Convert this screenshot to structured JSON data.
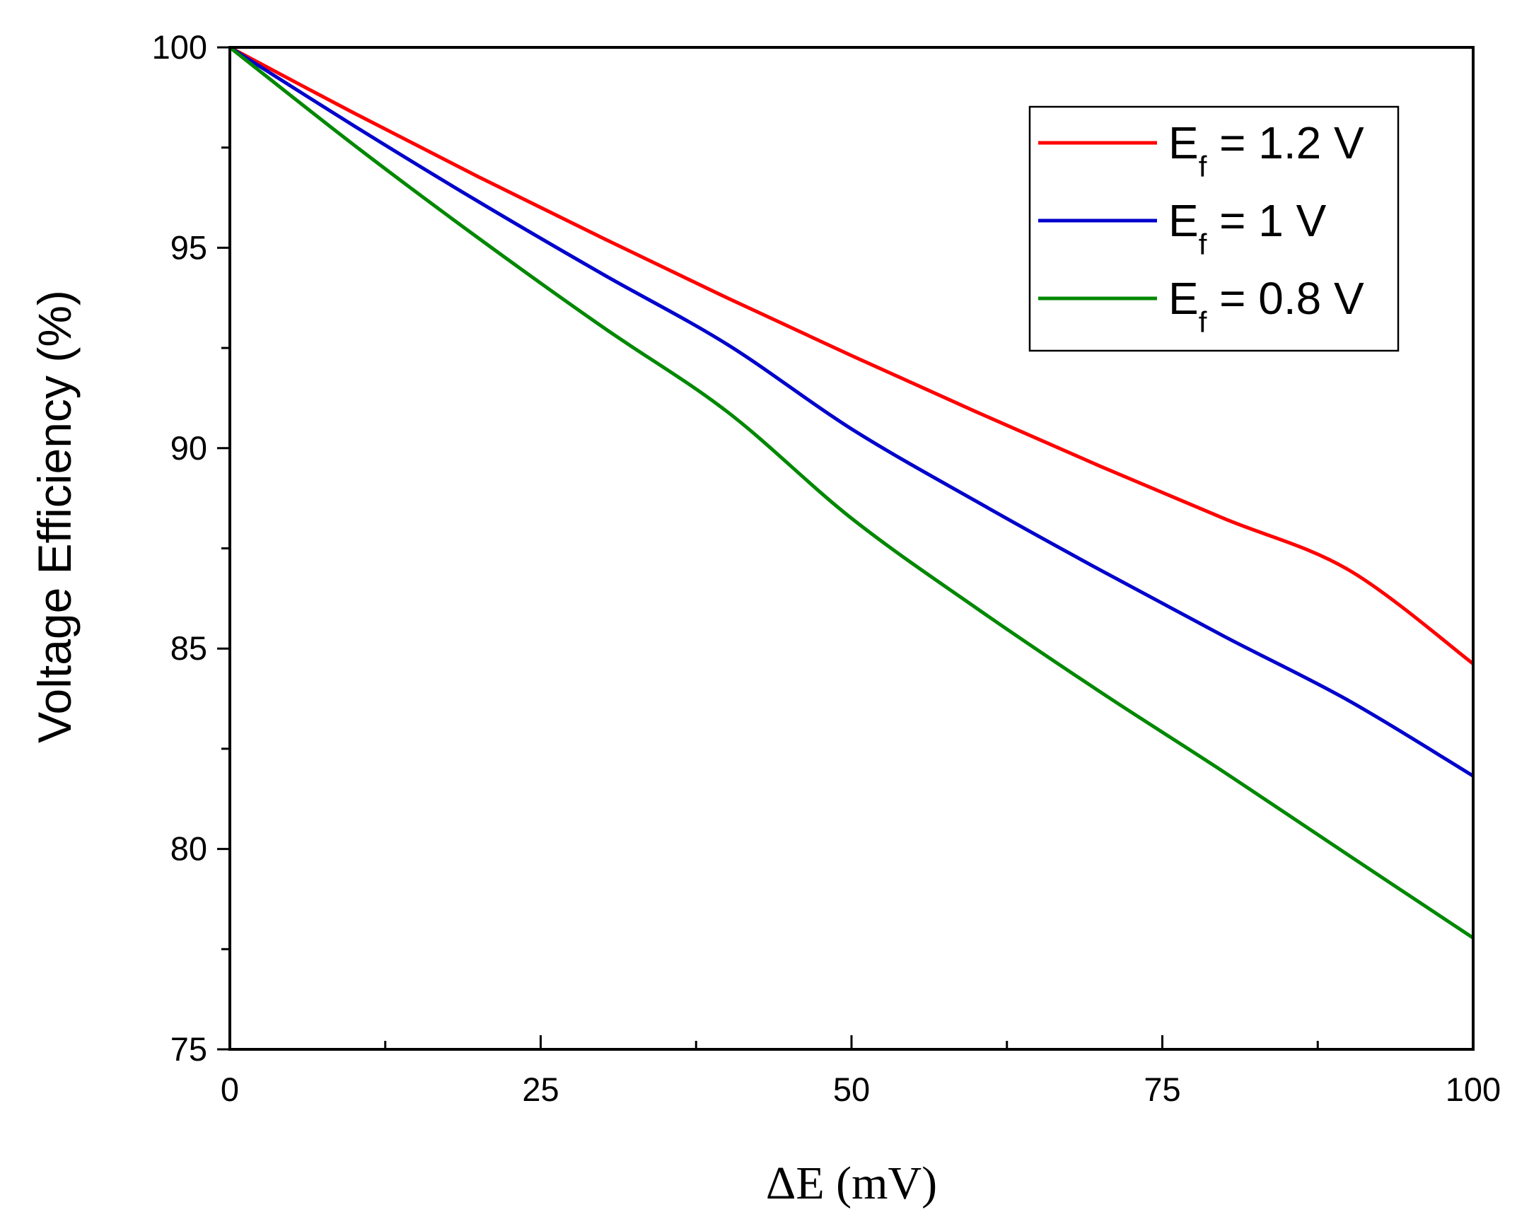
{
  "chart_data": {
    "type": "line",
    "title": "",
    "xlabel": "ΔE (mV)",
    "ylabel": "Voltage Efficiency (%)",
    "xlim": [
      0,
      100
    ],
    "ylim": [
      75,
      100
    ],
    "xticks": [
      0,
      25,
      50,
      75,
      100
    ],
    "yticks": [
      75,
      80,
      85,
      90,
      95,
      100
    ],
    "x_minor_step": 12.5,
    "y_minor_step": 2.5,
    "grid": false,
    "legend_position": "top-right",
    "x": [
      0,
      10,
      20,
      30,
      40,
      50,
      60,
      70,
      80,
      90,
      100
    ],
    "series": [
      {
        "name": "Ef = 1.2 V",
        "label_main": "E",
        "label_sub": "f",
        "label_rest": " = 1.2 V",
        "color": "#ff0000",
        "values": [
          100,
          98.36,
          96.77,
          95.24,
          93.75,
          92.31,
          90.91,
          89.55,
          88.24,
          86.96,
          84.62
        ]
      },
      {
        "name": "Ef = 1 V",
        "label_main": "E",
        "label_sub": "f",
        "label_rest": " = 1 V",
        "color": "#0000cc",
        "values": [
          100,
          98.04,
          96.15,
          94.34,
          92.59,
          90.48,
          88.68,
          86.96,
          85.3,
          83.7,
          81.82
        ]
      },
      {
        "name": "Ef = 0.8 V",
        "label_main": "E",
        "label_sub": "f",
        "label_rest": " = 0.8 V",
        "color": "#008800",
        "values": [
          100,
          97.56,
          95.24,
          93.02,
          90.91,
          88.25,
          86.02,
          83.92,
          81.91,
          79.84,
          77.78
        ]
      }
    ]
  }
}
